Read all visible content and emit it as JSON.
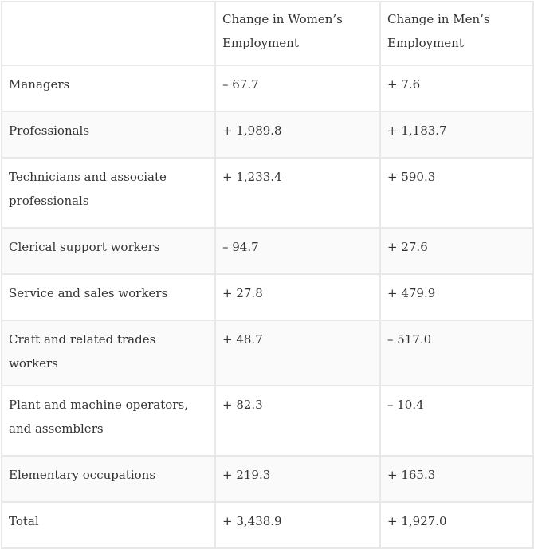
{
  "table": {
    "headers": [
      "",
      "Change in Women’s Employment",
      "Change in Men’s Employment"
    ],
    "rows": [
      {
        "occupation": "Managers",
        "women": "– 67.7",
        "men": "+ 7.6"
      },
      {
        "occupation": "Professionals",
        "women": "+ 1,989.8",
        "men": "+ 1,183.7"
      },
      {
        "occupation": "Technicians and associate professionals",
        "women": "+ 1,233.4",
        "men": "+ 590.3"
      },
      {
        "occupation": "Clerical support workers",
        "women": "– 94.7",
        "men": "+ 27.6"
      },
      {
        "occupation": "Service and sales workers",
        "women": "+ 27.8",
        "men": "+ 479.9"
      },
      {
        "occupation": "Craft and related trades workers",
        "women": "+ 48.7",
        "men": "– 517.0"
      },
      {
        "occupation": "Plant and machine operators, and assemblers",
        "women": "+ 82.3",
        "men": "– 10.4"
      },
      {
        "occupation": "Elementary occupations",
        "women": "+ 219.3",
        "men": "+ 165.3"
      },
      {
        "occupation": "Total",
        "women": "+ 3,438.9",
        "men": "+ 1,927.0"
      }
    ]
  }
}
